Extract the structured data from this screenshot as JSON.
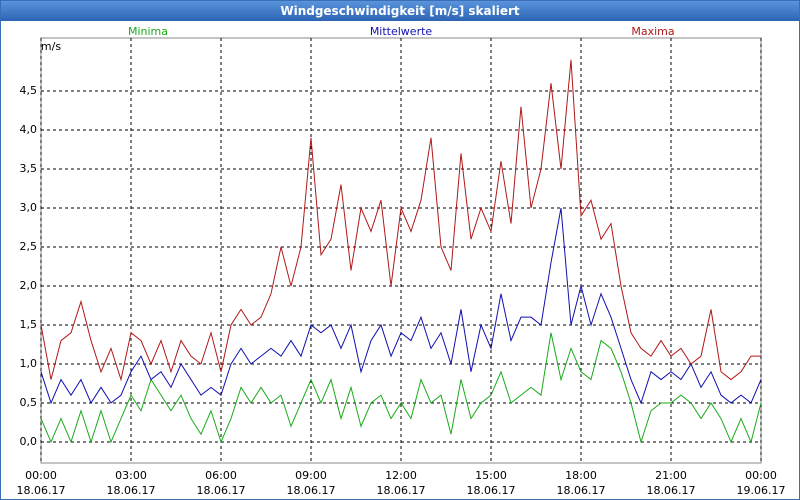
{
  "chart_data": {
    "type": "line",
    "title": "Windgeschwindigkeit [m/s] skaliert",
    "y_label": "m/s",
    "x": [
      0,
      20,
      40,
      60,
      80,
      100,
      120,
      140,
      160,
      180,
      200,
      220,
      240,
      260,
      280,
      300,
      320,
      340,
      360,
      380,
      400,
      420,
      440,
      460,
      480,
      500,
      520,
      540,
      560,
      580,
      600,
      620,
      640,
      660,
      680,
      700,
      720,
      740,
      760,
      780,
      800,
      820,
      840,
      860,
      880,
      900,
      920,
      940,
      960,
      980,
      1000,
      1020,
      1040,
      1060,
      1080,
      1100,
      1120,
      1140,
      1160,
      1180,
      1200,
      1220,
      1240,
      1260,
      1280,
      1300,
      1320,
      1340,
      1360,
      1380,
      1400,
      1420,
      1440
    ],
    "xlim": [
      0,
      1440
    ],
    "xticks": [
      {
        "value": 0,
        "label": "00:00\n18.06.17"
      },
      {
        "value": 180,
        "label": "03:00\n18.06.17"
      },
      {
        "value": 360,
        "label": "06:00\n18.06.17"
      },
      {
        "value": 540,
        "label": "09:00\n18.06.17"
      },
      {
        "value": 720,
        "label": "12:00\n18.06.17"
      },
      {
        "value": 900,
        "label": "15:00\n18.06.17"
      },
      {
        "value": 1080,
        "label": "18:00\n18.06.17"
      },
      {
        "value": 1260,
        "label": "21:00\n18.06.17"
      },
      {
        "value": 1440,
        "label": "00:00\n19.06.17"
      }
    ],
    "ylim": [
      -0.27,
      5.18
    ],
    "yticks": [
      {
        "value": 0,
        "label": "0,0"
      },
      {
        "value": 0.5,
        "label": "0,5"
      },
      {
        "value": 1,
        "label": "1,0"
      },
      {
        "value": 1.5,
        "label": "1,5"
      },
      {
        "value": 2,
        "label": "2,0"
      },
      {
        "value": 2.5,
        "label": "2,5"
      },
      {
        "value": 3,
        "label": "3,0"
      },
      {
        "value": 3.5,
        "label": "3,5"
      },
      {
        "value": 4,
        "label": "4,0"
      },
      {
        "value": 4.5,
        "label": "4,5"
      }
    ],
    "grid": true,
    "series": [
      {
        "name": "Minima",
        "color": "#1aaa1a",
        "values": [
          0.3,
          0.0,
          0.3,
          0.0,
          0.4,
          0.0,
          0.4,
          0.0,
          0.3,
          0.6,
          0.4,
          0.8,
          0.6,
          0.4,
          0.6,
          0.3,
          0.1,
          0.4,
          0.0,
          0.3,
          0.7,
          0.5,
          0.7,
          0.5,
          0.6,
          0.2,
          0.5,
          0.8,
          0.5,
          0.8,
          0.3,
          0.7,
          0.2,
          0.5,
          0.6,
          0.3,
          0.5,
          0.3,
          0.8,
          0.5,
          0.6,
          0.1,
          0.8,
          0.3,
          0.5,
          0.6,
          0.9,
          0.5,
          0.6,
          0.7,
          0.6,
          1.4,
          0.8,
          1.2,
          0.9,
          0.8,
          1.3,
          1.2,
          0.9,
          0.5,
          0.0,
          0.4,
          0.5,
          0.5,
          0.6,
          0.5,
          0.3,
          0.5,
          0.3,
          0.0,
          0.3,
          0.0,
          0.5
        ]
      },
      {
        "name": "Mittelwerte",
        "color": "#1010b0",
        "values": [
          0.9,
          0.5,
          0.8,
          0.6,
          0.8,
          0.5,
          0.7,
          0.5,
          0.6,
          0.9,
          1.1,
          0.8,
          0.9,
          0.7,
          1.0,
          0.8,
          0.6,
          0.7,
          0.6,
          1.0,
          1.2,
          1.0,
          1.1,
          1.2,
          1.1,
          1.3,
          1.1,
          1.5,
          1.4,
          1.5,
          1.2,
          1.5,
          0.9,
          1.3,
          1.5,
          1.1,
          1.4,
          1.3,
          1.6,
          1.2,
          1.4,
          1.0,
          1.7,
          0.9,
          1.5,
          1.2,
          1.9,
          1.3,
          1.6,
          1.6,
          1.5,
          2.3,
          3.0,
          1.5,
          2.0,
          1.5,
          1.9,
          1.6,
          1.2,
          0.8,
          0.5,
          0.9,
          0.8,
          0.9,
          0.8,
          1.0,
          0.7,
          0.9,
          0.6,
          0.5,
          0.6,
          0.5,
          0.8
        ]
      },
      {
        "name": "Maxima",
        "color": "#b01818",
        "values": [
          1.5,
          0.8,
          1.3,
          1.4,
          1.8,
          1.3,
          0.9,
          1.2,
          0.8,
          1.4,
          1.3,
          1.0,
          1.3,
          0.9,
          1.3,
          1.1,
          1.0,
          1.4,
          0.9,
          1.5,
          1.7,
          1.5,
          1.6,
          1.9,
          2.5,
          2.0,
          2.5,
          3.9,
          2.4,
          2.6,
          3.3,
          2.2,
          3.0,
          2.7,
          3.1,
          2.0,
          3.0,
          2.7,
          3.1,
          3.9,
          2.5,
          2.2,
          3.7,
          2.6,
          3.0,
          2.7,
          3.6,
          2.8,
          4.3,
          3.0,
          3.5,
          4.6,
          3.5,
          4.9,
          2.9,
          3.1,
          2.6,
          2.8,
          2.0,
          1.4,
          1.2,
          1.1,
          1.3,
          1.1,
          1.2,
          1.0,
          1.1,
          1.7,
          0.9,
          0.8,
          0.9,
          1.1,
          1.1
        ]
      }
    ]
  }
}
